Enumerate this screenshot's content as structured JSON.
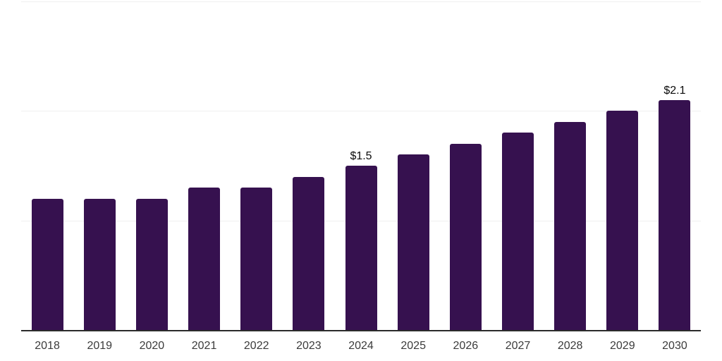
{
  "chart_data": {
    "type": "bar",
    "title": "",
    "xlabel": "",
    "ylabel": "",
    "categories": [
      "2018",
      "2019",
      "2020",
      "2021",
      "2022",
      "2023",
      "2024",
      "2025",
      "2026",
      "2027",
      "2028",
      "2029",
      "2030"
    ],
    "values": [
      1.2,
      1.2,
      1.2,
      1.3,
      1.3,
      1.4,
      1.5,
      1.6,
      1.7,
      1.8,
      1.9,
      2.0,
      2.1
    ],
    "bar_labels": [
      "",
      "",
      "",
      "",
      "",
      "",
      "$1.5",
      "",
      "",
      "",
      "",
      "",
      "$2.1"
    ],
    "ylim": [
      0,
      3
    ],
    "gridline_values": [
      1,
      2,
      3
    ],
    "grid": true,
    "legend": false,
    "colors": {
      "bar": "#36114F",
      "axis_line": "#2b2b2b",
      "gridline": "#f0f0f0",
      "tick_label": "#3b3b3b",
      "bar_label": "#0a0a0a",
      "background": "#ffffff"
    }
  }
}
